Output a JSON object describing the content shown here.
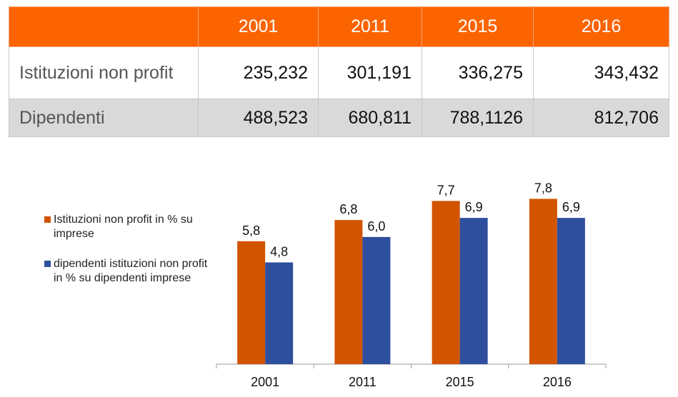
{
  "table": {
    "header": [
      "",
      "2001",
      "2011",
      "2015",
      "2016"
    ],
    "rows": [
      {
        "label": "Istituzioni non profit",
        "values": [
          "235,232",
          "301,191",
          "336,275",
          "343,432"
        ]
      },
      {
        "label": "Dipendenti",
        "values": [
          "488,523",
          "680,811",
          "788,1126",
          "812,706"
        ]
      }
    ],
    "header_color": "#fc6400",
    "alt_row_color": "#d9d9d9"
  },
  "chart_data": {
    "type": "bar",
    "categories": [
      "2001",
      "2011",
      "2015",
      "2016"
    ],
    "series": [
      {
        "name": "Istituzioni non profit in % su imprese",
        "values": [
          5.8,
          6.8,
          7.7,
          7.8
        ],
        "labels": [
          "5,8",
          "6,8",
          "7,7",
          "7,8"
        ],
        "color": "#d35400"
      },
      {
        "name": "dipendenti istituzioni non profit in % su dipendenti imprese",
        "values": [
          4.8,
          6.0,
          6.9,
          6.9
        ],
        "labels": [
          "4,8",
          "6,0",
          "6,9",
          "6,9"
        ],
        "color": "#2e4e9e"
      }
    ],
    "ylim": [
      0,
      9.5
    ],
    "grid": false,
    "legend": "left"
  }
}
